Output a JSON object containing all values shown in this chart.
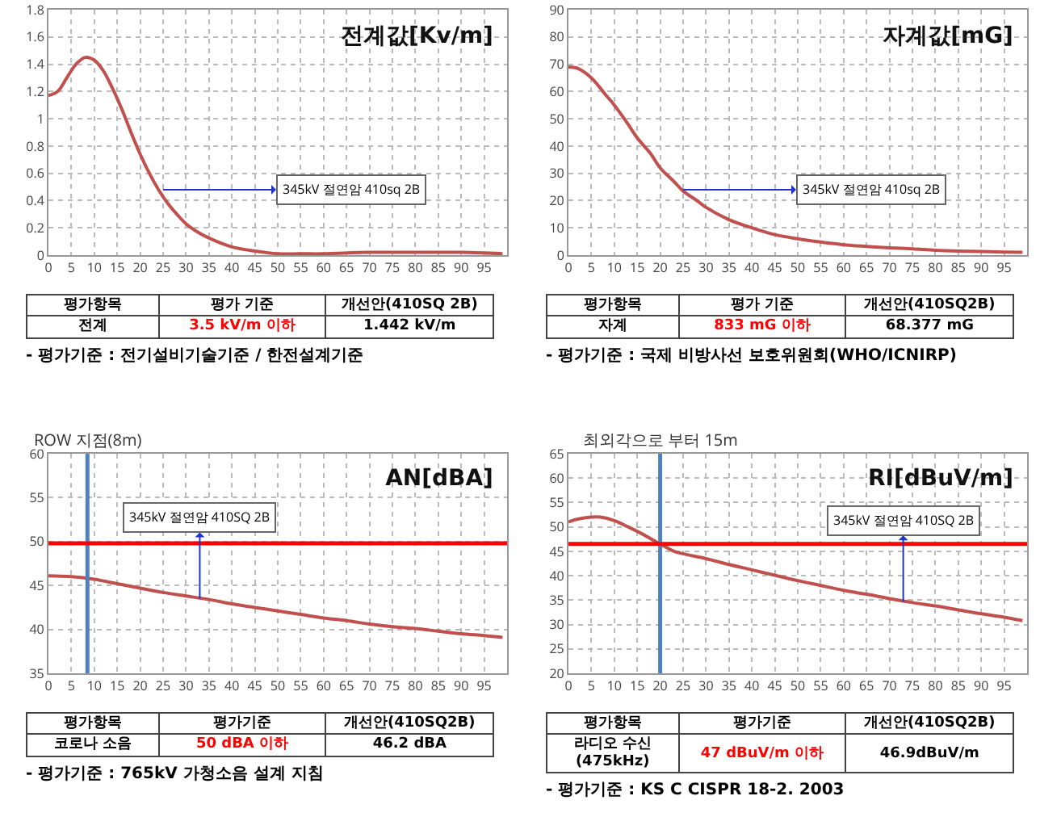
{
  "chart_data": [
    {
      "type": "line",
      "title": "전계값[Kv/m]",
      "x": [
        0,
        2,
        4,
        6,
        8,
        10,
        12,
        14,
        16,
        18,
        20,
        22,
        24,
        26,
        28,
        30,
        33,
        36,
        40,
        45,
        50,
        55,
        60,
        70,
        80,
        90,
        99
      ],
      "series": [
        {
          "color": "#c0504d",
          "values": [
            1.17,
            1.2,
            1.3,
            1.4,
            1.45,
            1.43,
            1.35,
            1.22,
            1.07,
            0.9,
            0.74,
            0.6,
            0.48,
            0.38,
            0.3,
            0.23,
            0.16,
            0.11,
            0.06,
            0.03,
            0.01,
            0.01,
            0.01,
            0.02,
            0.02,
            0.02,
            0.01
          ]
        }
      ],
      "xlim": [
        0,
        100
      ],
      "xticks": [
        0,
        5,
        10,
        15,
        20,
        25,
        30,
        35,
        40,
        45,
        50,
        55,
        60,
        65,
        70,
        75,
        80,
        85,
        90,
        95
      ],
      "ylim": [
        0,
        1.8
      ],
      "yticks": [
        0,
        0.2,
        0.4,
        0.6,
        0.8,
        1,
        1.2,
        1.4,
        1.6,
        1.8
      ],
      "grid": true,
      "annotations": [
        {
          "text": "345kV 절연암 410sq 2B",
          "x": 25,
          "y": 0.48
        },
        "평가항목",
        "평가 기준",
        "개선안(410SQ 2B)",
        "전계",
        "3.5 kV/m 이하",
        "1.442 kV/m",
        "- 평가기준 : 전기설비기술기준 / 한전설계기준"
      ]
    },
    {
      "type": "line",
      "title": "자계값[mG]",
      "x": [
        0,
        2,
        5,
        8,
        10,
        13,
        15,
        18,
        20,
        23,
        25,
        28,
        30,
        35,
        40,
        45,
        50,
        55,
        60,
        65,
        70,
        75,
        80,
        85,
        90,
        95,
        99
      ],
      "series": [
        {
          "color": "#c0504d",
          "values": [
            69,
            68.5,
            65,
            59,
            55,
            48,
            43,
            37,
            32,
            27,
            23.5,
            20,
            17.5,
            13,
            10,
            7.5,
            6,
            4.8,
            3.8,
            3.2,
            2.7,
            2.3,
            1.8,
            1.5,
            1.3,
            1.1,
            1
          ]
        }
      ],
      "xlim": [
        0,
        100
      ],
      "xticks": [
        0,
        5,
        10,
        15,
        20,
        25,
        30,
        35,
        40,
        45,
        50,
        55,
        60,
        65,
        70,
        75,
        80,
        85,
        90,
        95
      ],
      "ylim": [
        0,
        90
      ],
      "yticks": [
        0,
        10,
        20,
        30,
        40,
        50,
        60,
        70,
        80,
        90
      ],
      "grid": true,
      "annotations": [
        {
          "text": "345kV 절연암 410sq 2B",
          "x": 25,
          "y": 24
        },
        "평가항목",
        "평가 기준",
        "개선안(410SQ2B)",
        "자계",
        "833 mG 이하",
        "68.377 mG",
        "- 평가기준 : 국제 비방사선 보호위원회(WHO/ICNIRP)"
      ]
    },
    {
      "type": "line",
      "title": "AN[dBA]",
      "x": [
        0,
        5,
        10,
        15,
        20,
        25,
        30,
        35,
        40,
        45,
        50,
        55,
        60,
        65,
        70,
        75,
        80,
        85,
        90,
        95,
        99
      ],
      "series": [
        {
          "color": "#c0504d",
          "values": [
            46.1,
            46,
            45.7,
            45.2,
            44.7,
            44.2,
            43.8,
            43.4,
            42.9,
            42.5,
            42.1,
            41.7,
            41.3,
            41,
            40.6,
            40.3,
            40.1,
            39.8,
            39.5,
            39.3,
            39.1
          ]
        }
      ],
      "xlim": [
        0,
        100
      ],
      "xticks": [
        0,
        5,
        10,
        15,
        20,
        25,
        30,
        35,
        40,
        45,
        50,
        55,
        60,
        65,
        70,
        75,
        80,
        85,
        90,
        95
      ],
      "ylim": [
        35,
        60
      ],
      "yticks": [
        35,
        40,
        45,
        50,
        55,
        60
      ],
      "grid": true,
      "ref_lines": [
        {
          "axis": "x",
          "value": 8.5,
          "label": "ROW 지점(8m)",
          "color": "#4f81bd"
        },
        {
          "axis": "y",
          "value": 49.8,
          "color": "#ff0000"
        }
      ],
      "annotations": [
        {
          "text": "345kV 절연암 410SQ 2B",
          "x": 33,
          "y": 43.5
        },
        "평가항목",
        "평가기준",
        "개선안(410SQ2B)",
        "코로나 소음",
        "50 dBA 이하",
        "46.2 dBA",
        "- 평가기준 : 765kV 가청소음 설계 지침"
      ]
    },
    {
      "type": "line",
      "title": "RI[dBuV/m]",
      "x": [
        0,
        2,
        5,
        7,
        10,
        13,
        16,
        20,
        23,
        25,
        30,
        35,
        40,
        45,
        50,
        55,
        60,
        65,
        70,
        75,
        80,
        85,
        90,
        95,
        99
      ],
      "series": [
        {
          "color": "#c0504d",
          "values": [
            51,
            51.6,
            52,
            52,
            51.3,
            50,
            48.6,
            46.5,
            45,
            44.5,
            43.5,
            42.3,
            41.2,
            40.1,
            39,
            38,
            37,
            36.2,
            35.3,
            34.5,
            33.8,
            33,
            32.2,
            31.5,
            30.8
          ]
        }
      ],
      "xlim": [
        0,
        100
      ],
      "xticks": [
        0,
        5,
        10,
        15,
        20,
        25,
        30,
        35,
        40,
        45,
        50,
        55,
        60,
        65,
        70,
        75,
        80,
        85,
        90,
        95
      ],
      "ylim": [
        20,
        65
      ],
      "yticks": [
        20,
        25,
        30,
        35,
        40,
        45,
        50,
        55,
        60,
        65
      ],
      "grid": true,
      "ref_lines": [
        {
          "axis": "x",
          "value": 20,
          "label": "최외각으로 부터 15m",
          "color": "#4f81bd"
        },
        {
          "axis": "y",
          "value": 46.5,
          "color": "#ff0000"
        }
      ],
      "annotations": [
        {
          "text": "345kV 절연암 410SQ 2B",
          "x": 73,
          "y": 34.7
        },
        "평가항목",
        "평가기준",
        "개선안(410SQ2B)",
        "라디오 수신 (475kHz)",
        "47 dBuV/m 이하",
        "46.9dBuV/m",
        "- 평가기준 : KS C CISPR 18-2. 2003"
      ]
    }
  ]
}
